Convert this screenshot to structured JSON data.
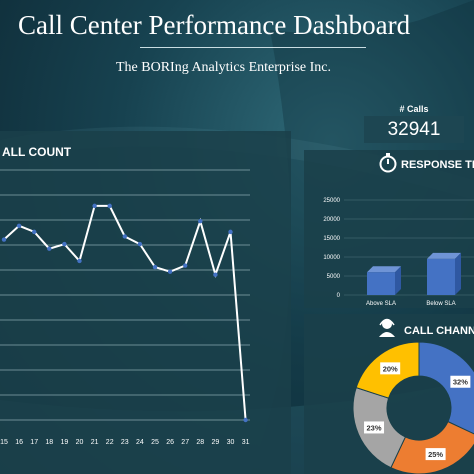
{
  "header": {
    "title": "Call Center Performance Dashboard",
    "subtitle": "The BORIng Analytics Enterprise Inc."
  },
  "kpi": {
    "label": "# Calls",
    "value": "32941"
  },
  "call_count": {
    "title": "ALL COUNT"
  },
  "response_time": {
    "title": "RESPONSE TIME"
  },
  "call_channel": {
    "title": "CALL CHANNEL"
  },
  "icons": {
    "response_time": "stopwatch-icon",
    "call_channel": "headset-user-icon"
  },
  "colors": {
    "bar": "#4472c4",
    "donut": [
      "#4472c4",
      "#ed7d31",
      "#a5a5a5",
      "#ffc000"
    ],
    "line": "#ffffff",
    "marker": "#4472c4"
  },
  "chart_data": [
    {
      "type": "line",
      "title": "ALL COUNT",
      "x": [
        "15",
        "16",
        "17",
        "18",
        "19",
        "20",
        "21",
        "22",
        "23",
        "24",
        "25",
        "26",
        "27",
        "28",
        "29",
        "30",
        "31"
      ],
      "series": [
        {
          "values": [
            1180,
            1270,
            1230,
            1120,
            1150,
            1040,
            1400,
            1400,
            1200,
            1150,
            1000,
            970,
            1010,
            1300,
            950,
            1230,
            0
          ]
        }
      ],
      "grid": true
    },
    {
      "type": "bar",
      "categories": [
        "Above SLA",
        "Below SLA"
      ],
      "values": [
        6000,
        9500
      ],
      "yticks": [
        0,
        5000,
        10000,
        15000,
        20000,
        25000
      ],
      "ylim": [
        0,
        25000
      ],
      "grid": true
    },
    {
      "type": "pie",
      "labels": [
        "32%",
        "25%",
        "23%",
        "20%"
      ],
      "values": [
        32,
        25,
        23,
        20
      ]
    }
  ]
}
